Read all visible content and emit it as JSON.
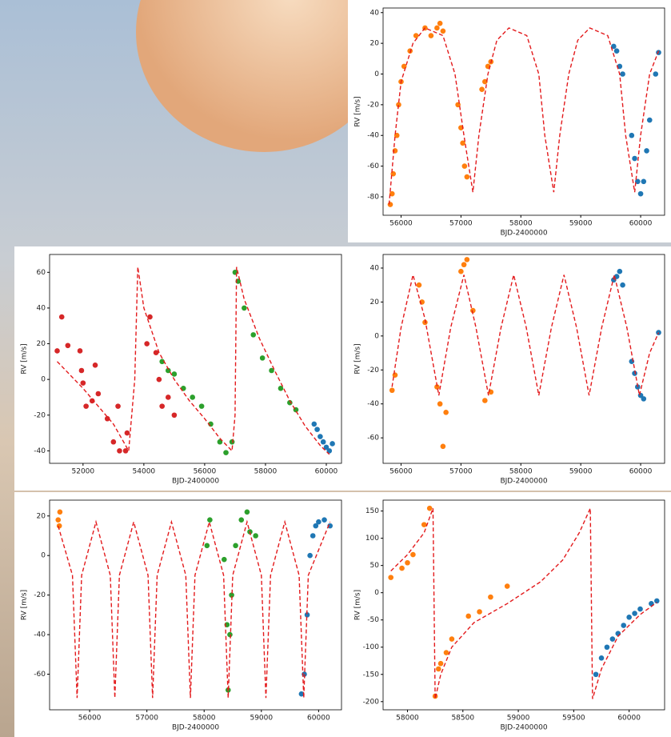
{
  "chart_data": [
    {
      "type": "scatter",
      "xlabel": "BJD-2400000",
      "ylabel": "RV [m/s]",
      "xlim": [
        55700,
        60400
      ],
      "ylim": [
        -92,
        43
      ],
      "xticks": [
        56000,
        57000,
        58000,
        59000,
        60000
      ],
      "yticks": [
        -80,
        -60,
        -40,
        -20,
        0,
        20,
        40
      ],
      "series": [
        {
          "color": "#ff7f0e",
          "mode": "markers",
          "x": [
            55820,
            55850,
            55870,
            55900,
            55930,
            55960,
            56000,
            56050,
            56150,
            56250,
            56400,
            56500,
            56600,
            56650,
            56700,
            56950,
            57000,
            57030,
            57060,
            57100,
            57350,
            57400,
            57450,
            57500
          ],
          "values": [
            -85,
            -78,
            -65,
            -50,
            -40,
            -20,
            -5,
            5,
            15,
            25,
            30,
            25,
            30,
            33,
            28,
            -20,
            -35,
            -45,
            -60,
            -67,
            -10,
            -5,
            5,
            8
          ]
        },
        {
          "color": "#1f77b4",
          "mode": "markers",
          "x": [
            59550,
            59600,
            59650,
            59700,
            59850,
            59900,
            59950,
            60000,
            60050,
            60100,
            60150,
            60250,
            60300
          ],
          "values": [
            18,
            15,
            5,
            0,
            -40,
            -55,
            -70,
            -78,
            -70,
            -50,
            -30,
            0,
            14
          ]
        },
        {
          "color": "#e31a1c",
          "mode": "dashed",
          "x": [
            55800,
            55900,
            56000,
            56200,
            56400,
            56700,
            56900,
            57050,
            57200,
            57300,
            57450,
            57600,
            57800,
            58100,
            58300,
            58400,
            58550,
            58650,
            58800,
            58950,
            59150,
            59450,
            59650,
            59750,
            59900,
            60000,
            60150,
            60300
          ],
          "values": [
            -85,
            -40,
            -5,
            20,
            30,
            25,
            0,
            -40,
            -77,
            -40,
            0,
            22,
            30,
            25,
            0,
            -40,
            -77,
            -40,
            0,
            22,
            30,
            25,
            0,
            -40,
            -77,
            -40,
            0,
            15
          ]
        }
      ]
    },
    {
      "type": "scatter",
      "xlabel": "BJD-2400000",
      "ylabel": "RV [m/s]",
      "xlim": [
        50900,
        60500
      ],
      "ylim": [
        -47,
        70
      ],
      "xticks": [
        52000,
        54000,
        56000,
        58000,
        60000
      ],
      "yticks": [
        -40,
        -20,
        0,
        20,
        40,
        60
      ],
      "series": [
        {
          "color": "#d62728",
          "mode": "markers",
          "x": [
            51150,
            51300,
            51500,
            51900,
            51950,
            52000,
            52100,
            52300,
            52400,
            52500,
            52800,
            53000,
            53150,
            53200,
            53400,
            53450,
            54100,
            54200,
            54400,
            54500,
            54600,
            54800,
            55000
          ],
          "values": [
            16,
            35,
            19,
            16,
            5,
            -2,
            -15,
            -12,
            8,
            -8,
            -22,
            -35,
            -15,
            -40,
            -40,
            -30,
            20,
            35,
            15,
            0,
            -15,
            -10,
            -20
          ]
        },
        {
          "color": "#2ca02c",
          "mode": "markers",
          "x": [
            54600,
            54800,
            55000,
            55300,
            55600,
            55900,
            56200,
            56500,
            56700,
            56900,
            57000,
            57100,
            57300,
            57600,
            57900,
            58200,
            58500,
            58800,
            59000
          ],
          "values": [
            10,
            5,
            3,
            -5,
            -10,
            -15,
            -25,
            -35,
            -41,
            -35,
            60,
            55,
            40,
            25,
            12,
            5,
            -5,
            -13,
            -17
          ]
        },
        {
          "color": "#1f77b4",
          "mode": "markers",
          "x": [
            59600,
            59700,
            59800,
            59900,
            60000,
            60100,
            60200
          ],
          "values": [
            -25,
            -28,
            -32,
            -35,
            -38,
            -40,
            -36
          ]
        },
        {
          "color": "#e31a1c",
          "mode": "dashed",
          "x": [
            51150,
            52000,
            53000,
            53500,
            53700,
            53800,
            54000,
            54500,
            55000,
            55500,
            56000,
            56500,
            56900,
            57000,
            57050,
            57300,
            57800,
            58300,
            58800,
            59300,
            59800,
            60100
          ],
          "values": [
            10,
            -5,
            -25,
            -40,
            0,
            63,
            40,
            15,
            0,
            -12,
            -22,
            -33,
            -40,
            -20,
            63,
            45,
            23,
            5,
            -12,
            -26,
            -37,
            -42
          ]
        }
      ]
    },
    {
      "type": "scatter",
      "xlabel": "BJD-2400000",
      "ylabel": "RV [m/s]",
      "xlim": [
        55700,
        60400
      ],
      "ylim": [
        -75,
        48
      ],
      "xticks": [
        56000,
        57000,
        58000,
        59000,
        60000
      ],
      "yticks": [
        -60,
        -40,
        -20,
        0,
        20,
        40
      ],
      "series": [
        {
          "color": "#ff7f0e",
          "mode": "markers",
          "x": [
            55850,
            55900,
            56300,
            56350,
            56400,
            56600,
            56650,
            56700,
            56750,
            57000,
            57050,
            57100,
            57200,
            57400,
            57500
          ],
          "values": [
            -32,
            -23,
            30,
            20,
            8,
            -30,
            -40,
            -65,
            -45,
            38,
            42,
            45,
            15,
            -38,
            -33
          ]
        },
        {
          "color": "#1f77b4",
          "mode": "markers",
          "x": [
            59550,
            59600,
            59650,
            59700,
            59850,
            59900,
            59950,
            60000,
            60050,
            60300
          ],
          "values": [
            33,
            35,
            38,
            30,
            -15,
            -22,
            -30,
            -35,
            -37,
            2
          ]
        },
        {
          "color": "#e31a1c",
          "mode": "dashed",
          "x": [
            55850,
            56000,
            56200,
            56400,
            56630,
            56830,
            57050,
            57250,
            57460,
            57670,
            57880,
            58090,
            58300,
            58510,
            58720,
            58930,
            59140,
            59350,
            59560,
            59770,
            59980,
            60150,
            60300
          ],
          "values": [
            -30,
            5,
            36,
            10,
            -35,
            5,
            36,
            5,
            -35,
            5,
            36,
            5,
            -35,
            5,
            36,
            5,
            -35,
            5,
            36,
            5,
            -35,
            -10,
            2
          ]
        }
      ]
    },
    {
      "type": "scatter",
      "xlabel": "BJD-2400000",
      "ylabel": "RV [m/s]",
      "xlim": [
        55300,
        60400
      ],
      "ylim": [
        -78,
        28
      ],
      "xticks": [
        56000,
        57000,
        58000,
        59000,
        60000
      ],
      "yticks": [
        -60,
        -40,
        -20,
        0,
        20
      ],
      "series": [
        {
          "color": "#ff7f0e",
          "mode": "markers",
          "x": [
            55450,
            55470,
            55480
          ],
          "values": [
            18,
            15,
            22
          ]
        },
        {
          "color": "#2ca02c",
          "mode": "markers",
          "x": [
            58050,
            58100,
            58350,
            58400,
            58420,
            58450,
            58480,
            58550,
            58650,
            58750,
            58800,
            58900
          ],
          "values": [
            5,
            18,
            -2,
            -35,
            -68,
            -40,
            -20,
            5,
            18,
            22,
            12,
            10
          ]
        },
        {
          "color": "#1f77b4",
          "mode": "markers",
          "x": [
            59700,
            59750,
            59800,
            59850,
            59900,
            59950,
            60000,
            60100,
            60200
          ],
          "values": [
            -70,
            -60,
            -30,
            0,
            10,
            15,
            17,
            18,
            15
          ]
        },
        {
          "color": "#e31a1c",
          "mode": "dashed",
          "x": [
            55450,
            55700,
            55780,
            55860,
            56110,
            56360,
            56440,
            56520,
            56770,
            57020,
            57100,
            57180,
            57430,
            57680,
            57760,
            57840,
            58090,
            58340,
            58420,
            58500,
            58750,
            59000,
            59080,
            59160,
            59410,
            59660,
            59740,
            59820,
            60200
          ],
          "values": [
            15,
            -10,
            -72,
            -10,
            17,
            -10,
            -72,
            -10,
            17,
            -10,
            -72,
            -10,
            17,
            -10,
            -72,
            -10,
            17,
            -10,
            -72,
            -10,
            17,
            -10,
            -72,
            -10,
            17,
            -10,
            -72,
            -10,
            17
          ]
        }
      ]
    },
    {
      "type": "scatter",
      "xlabel": "BJD-2400000",
      "ylabel": "RV [m/s]",
      "xlim": [
        57780,
        60320
      ],
      "ylim": [
        -215,
        170
      ],
      "xticks": [
        58000,
        58500,
        59000,
        59500,
        60000
      ],
      "yticks": [
        -200,
        -150,
        -100,
        -50,
        0,
        50,
        100,
        150
      ],
      "series": [
        {
          "color": "#ff7f0e",
          "mode": "markers",
          "x": [
            57850,
            57950,
            58000,
            58050,
            58150,
            58200,
            58250,
            58280,
            58300,
            58350,
            58400,
            58550,
            58650,
            58750,
            58900
          ],
          "values": [
            28,
            45,
            55,
            70,
            125,
            155,
            -190,
            -140,
            -130,
            -110,
            -85,
            -43,
            -35,
            -8,
            12
          ]
        },
        {
          "color": "#1f77b4",
          "mode": "markers",
          "x": [
            59700,
            59750,
            59800,
            59850,
            59900,
            59950,
            60000,
            60050,
            60100,
            60200,
            60250
          ],
          "values": [
            -150,
            -120,
            -100,
            -85,
            -75,
            -60,
            -45,
            -38,
            -30,
            -20,
            -15
          ]
        },
        {
          "color": "#e31a1c",
          "mode": "dashed",
          "x": [
            57850,
            58000,
            58150,
            58230,
            58250,
            58300,
            58400,
            58600,
            58900,
            59200,
            59400,
            59550,
            59650,
            59670,
            59750,
            59900,
            60100,
            60250
          ],
          "values": [
            40,
            70,
            110,
            155,
            -195,
            -150,
            -100,
            -55,
            -20,
            20,
            60,
            110,
            155,
            -195,
            -140,
            -80,
            -40,
            -18
          ]
        }
      ]
    }
  ]
}
